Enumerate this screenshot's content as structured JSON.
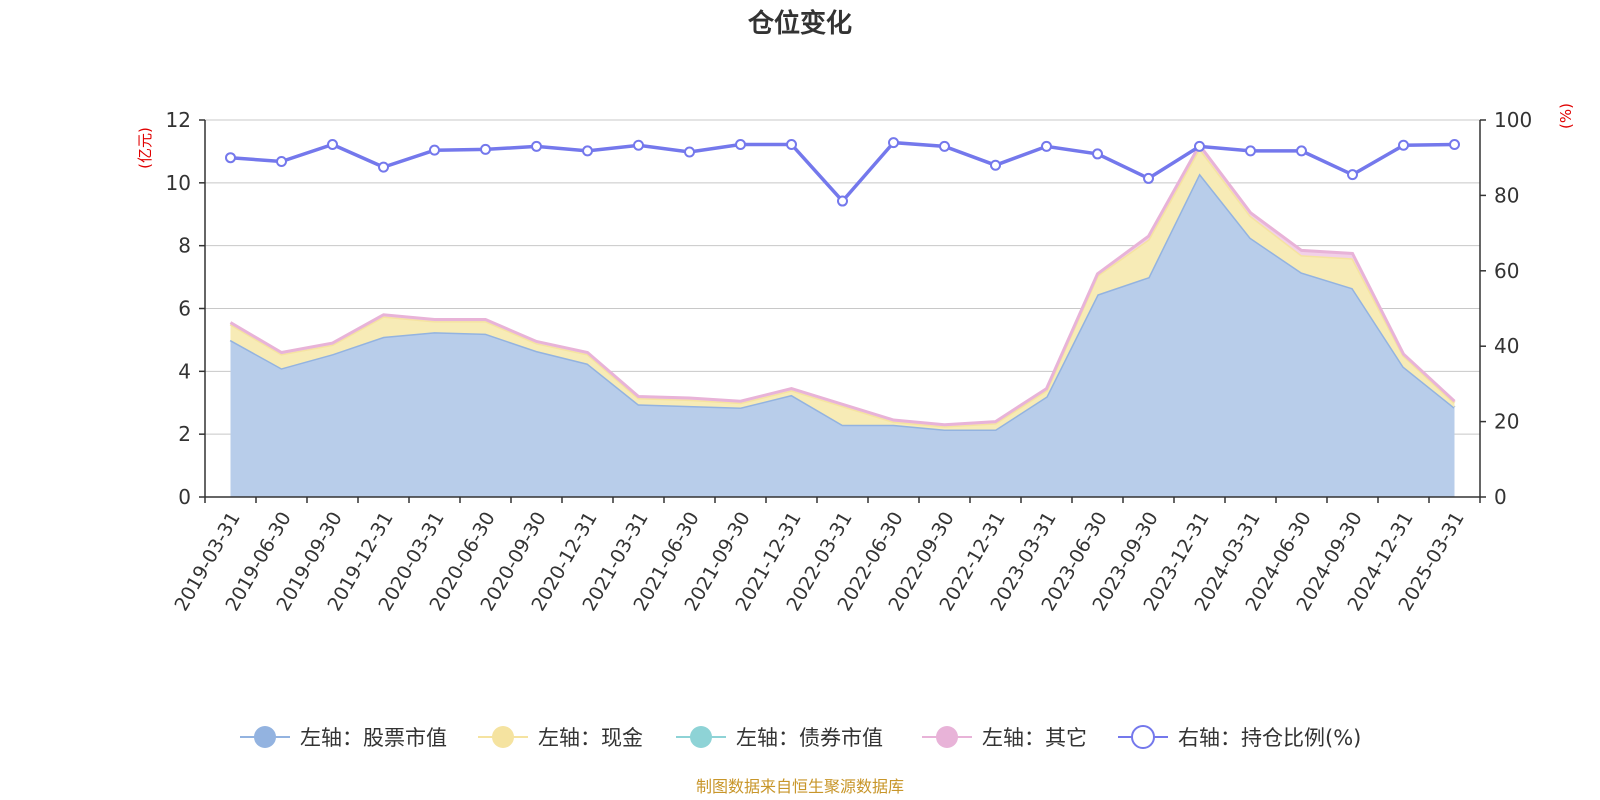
{
  "chart_data": {
    "type": "area",
    "title": "仓位变化",
    "left_axis_unit": "(亿元)",
    "right_axis_unit": "(%)",
    "ylim_left": [
      0,
      12
    ],
    "yticks_left": [
      "0",
      "2",
      "4",
      "6",
      "8",
      "10",
      "12"
    ],
    "ylim_right": [
      0,
      100
    ],
    "yticks_right": [
      "0",
      "20",
      "40",
      "60",
      "80",
      "100"
    ],
    "grid": true,
    "legend_position": "bottom",
    "categories": [
      "2019-03-31",
      "2019-06-30",
      "2019-09-30",
      "2019-12-31",
      "2020-03-31",
      "2020-06-30",
      "2020-09-30",
      "2020-12-31",
      "2021-03-31",
      "2021-06-30",
      "2021-09-30",
      "2021-12-31",
      "2022-03-31",
      "2022-06-30",
      "2022-09-30",
      "2022-12-31",
      "2023-03-31",
      "2023-06-30",
      "2023-09-30",
      "2023-12-31",
      "2024-03-31",
      "2024-06-30",
      "2024-09-30",
      "2024-12-31",
      "2025-03-31"
    ],
    "series": [
      {
        "name": "左轴：股票市值",
        "axis": "left",
        "stacked": true,
        "color": "#93b3e0",
        "fill": "#b8cdea",
        "values": [
          5.0,
          4.1,
          4.55,
          5.1,
          5.25,
          5.2,
          4.65,
          4.25,
          2.95,
          2.9,
          2.85,
          3.25,
          2.3,
          2.3,
          2.15,
          2.15,
          3.2,
          6.45,
          7.0,
          10.3,
          8.25,
          7.15,
          6.65,
          4.15,
          2.85
        ]
      },
      {
        "name": "左轴：现金",
        "axis": "left",
        "stacked": true,
        "color": "#f5e3a0",
        "fill": "#f7ebb6",
        "values": [
          0.5,
          0.45,
          0.3,
          0.65,
          0.35,
          0.4,
          0.25,
          0.3,
          0.2,
          0.2,
          0.15,
          0.15,
          0.6,
          0.1,
          0.1,
          0.2,
          0.2,
          0.6,
          1.2,
          0.8,
          0.7,
          0.55,
          0.95,
          0.35,
          0.15
        ]
      },
      {
        "name": "左轴：债券市值",
        "axis": "left",
        "stacked": true,
        "color": "#8ed3d6",
        "fill": "#b5e3e5",
        "values": [
          0,
          0,
          0,
          0,
          0,
          0,
          0,
          0,
          0,
          0,
          0,
          0,
          0,
          0,
          0,
          0,
          0,
          0,
          0,
          0,
          0,
          0,
          0,
          0,
          0
        ]
      },
      {
        "name": "左轴：其它",
        "axis": "left",
        "stacked": true,
        "color": "#e8b3d8",
        "fill": "#f2d0e8",
        "values": [
          0.05,
          0.05,
          0.05,
          0.05,
          0.05,
          0.05,
          0.05,
          0.05,
          0.05,
          0.05,
          0.05,
          0.05,
          0.05,
          0.05,
          0.05,
          0.05,
          0.05,
          0.05,
          0.1,
          0.1,
          0.1,
          0.15,
          0.15,
          0.05,
          0.05
        ]
      },
      {
        "name": "右轴：持仓比例(%)",
        "axis": "right",
        "type": "line",
        "color": "#7478ec",
        "values": [
          90.0,
          89.0,
          93.5,
          87.5,
          92.0,
          92.2,
          93.0,
          91.8,
          93.3,
          91.5,
          93.5,
          93.5,
          78.5,
          94.0,
          93.0,
          88.0,
          93.0,
          91.0,
          84.5,
          93.0,
          91.8,
          91.8,
          85.5,
          93.3,
          93.5
        ]
      }
    ],
    "legend": [
      {
        "label": "左轴：股票市值",
        "marker": "filled-circle",
        "color": "#93b3e0"
      },
      {
        "label": "左轴：现金",
        "marker": "filled-circle",
        "color": "#f5e3a0"
      },
      {
        "label": "左轴：债券市值",
        "marker": "filled-circle",
        "color": "#8ed3d6"
      },
      {
        "label": "左轴：其它",
        "marker": "filled-circle",
        "color": "#e8b3d8"
      },
      {
        "label": "右轴：持仓比例(%)",
        "marker": "hollow-circle",
        "color": "#7478ec"
      }
    ]
  },
  "footer": {
    "source": "制图数据来自恒生聚源数据库"
  }
}
